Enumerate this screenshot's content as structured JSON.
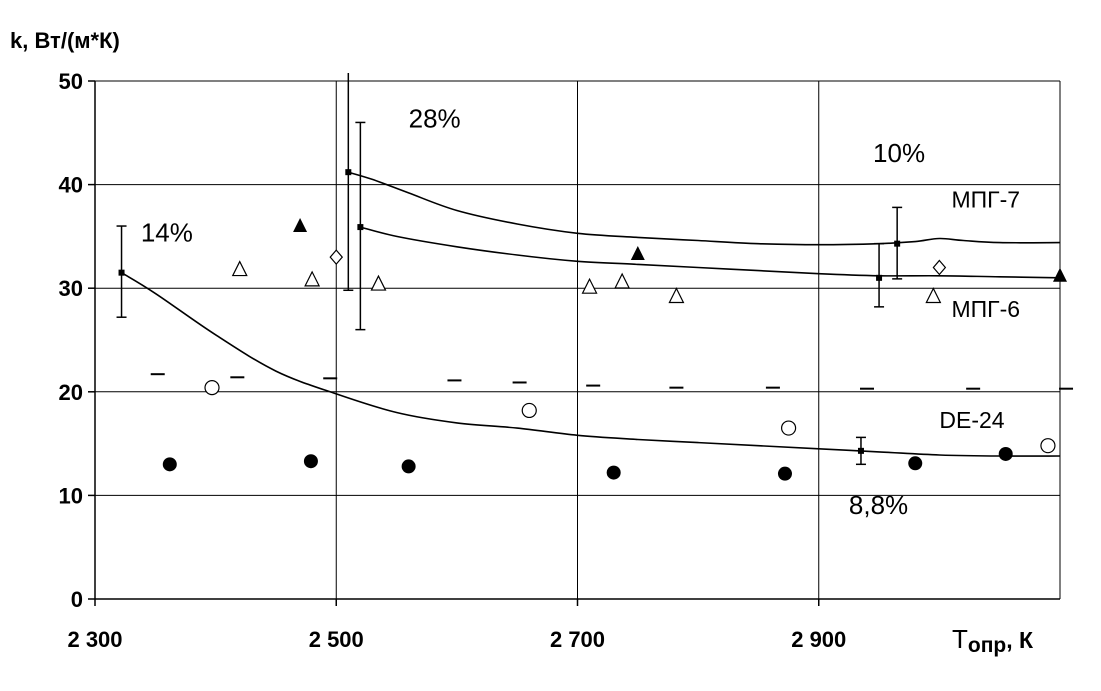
{
  "chart_data": {
    "type": "scatter",
    "title": "",
    "ylabel": "k, Вт/(м*К)",
    "xlabel": "T опр, К",
    "xlabel_main": "T",
    "xlabel_sub": "опр",
    "xlabel_unit": ", К",
    "xlim": [
      2300,
      3100
    ],
    "ylim": [
      0,
      50
    ],
    "grid": true,
    "x_ticks": [
      {
        "value": 2300,
        "label": "2 300"
      },
      {
        "value": 2500,
        "label": "2 500"
      },
      {
        "value": 2700,
        "label": "2 700"
      },
      {
        "value": 2900,
        "label": "2 900"
      }
    ],
    "x_gridlines": [
      2500,
      2700,
      2900,
      3100
    ],
    "y_ticks": [
      {
        "value": 0,
        "label": "0"
      },
      {
        "value": 10,
        "label": "10"
      },
      {
        "value": 20,
        "label": "20"
      },
      {
        "value": 30,
        "label": "30"
      },
      {
        "value": 40,
        "label": "40"
      },
      {
        "value": 50,
        "label": "50"
      }
    ],
    "curves": [
      {
        "name": "МПГ-7",
        "x": [
          2510,
          2530,
          2560,
          2600,
          2650,
          2700,
          2750,
          2800,
          2850,
          2900,
          2950,
          2980,
          3000,
          3020,
          3050,
          3100
        ],
        "y": [
          41.2,
          40.5,
          39.2,
          37.5,
          36.2,
          35.3,
          34.9,
          34.6,
          34.3,
          34.2,
          34.3,
          34.5,
          34.8,
          34.6,
          34.4,
          34.4
        ]
      },
      {
        "name": "МПГ-6",
        "x": [
          2520,
          2550,
          2600,
          2650,
          2700,
          2750,
          2800,
          2850,
          2900,
          2950,
          3000,
          3050,
          3100
        ],
        "y": [
          35.9,
          35.0,
          34.0,
          33.2,
          32.6,
          32.3,
          32.0,
          31.7,
          31.4,
          31.2,
          31.2,
          31.1,
          31.0
        ]
      },
      {
        "name": "DE-24",
        "x": [
          2322,
          2350,
          2400,
          2450,
          2500,
          2550,
          2600,
          2650,
          2700,
          2750,
          2800,
          2850,
          2900,
          2950,
          3000,
          3050,
          3100
        ],
        "y": [
          31.5,
          29.5,
          25.5,
          22.0,
          19.8,
          18.0,
          17.0,
          16.5,
          15.8,
          15.4,
          15.1,
          14.8,
          14.5,
          14.2,
          13.9,
          13.8,
          13.8
        ]
      }
    ],
    "markers": {
      "filled_triangle": {
        "x": [
          2470,
          2750,
          3100
        ],
        "y": [
          36.0,
          33.3,
          31.2
        ]
      },
      "open_triangle": {
        "x": [
          2420,
          2480,
          2535,
          2710,
          2737,
          2782,
          2995
        ],
        "y": [
          31.8,
          30.8,
          30.4,
          30.1,
          30.6,
          29.2,
          29.2
        ]
      },
      "open_diamond": {
        "x": [
          2500,
          3000
        ],
        "y": [
          33.0,
          32.0
        ]
      },
      "open_circle": {
        "x": [
          2397,
          2660,
          2875,
          3090
        ],
        "y": [
          20.4,
          18.2,
          16.5,
          14.8
        ]
      },
      "filled_circle": {
        "x": [
          2362,
          2479,
          2560,
          2730,
          2872,
          2980,
          3055
        ],
        "y": [
          13.0,
          13.3,
          12.8,
          12.2,
          12.1,
          13.1,
          14.0
        ]
      },
      "dash": {
        "x": [
          2352,
          2418,
          2495,
          2598,
          2652,
          2713,
          2782,
          2862,
          2940,
          3028,
          3105
        ],
        "y": [
          21.7,
          21.4,
          21.3,
          21.1,
          20.9,
          20.6,
          20.4,
          20.4,
          20.3,
          20.3,
          20.3
        ]
      }
    },
    "error_bars": [
      {
        "x": 2322,
        "y": 31.5,
        "low": 27.2,
        "high": 36.0
      },
      {
        "x": 2510,
        "y": 41.2,
        "low": 29.8,
        "high": 52.0
      },
      {
        "x": 2520,
        "y": 35.9,
        "low": 26.0,
        "high": 46.0
      },
      {
        "x": 2935,
        "y": 14.3,
        "low": 13.0,
        "high": 15.6
      },
      {
        "x": 2950,
        "y": 31.0,
        "low": 28.2,
        "high": 34.3
      },
      {
        "x": 2965,
        "y": 34.3,
        "low": 30.9,
        "high": 37.8
      }
    ],
    "annotations": [
      {
        "text": "14%",
        "x": 2338,
        "y": 34.5
      },
      {
        "text": "28%",
        "x": 2560,
        "y": 45.5
      },
      {
        "text": "10%",
        "x": 2945,
        "y": 42.2
      },
      {
        "text": "8,8%",
        "x": 2925,
        "y": 8.2
      }
    ],
    "series_labels": [
      {
        "text": "МПГ-7",
        "x": 3010,
        "y": 37.8
      },
      {
        "text": "МПГ-6",
        "x": 3010,
        "y": 27.2
      },
      {
        "text": "DE-24",
        "x": 3000,
        "y": 16.5
      }
    ]
  }
}
